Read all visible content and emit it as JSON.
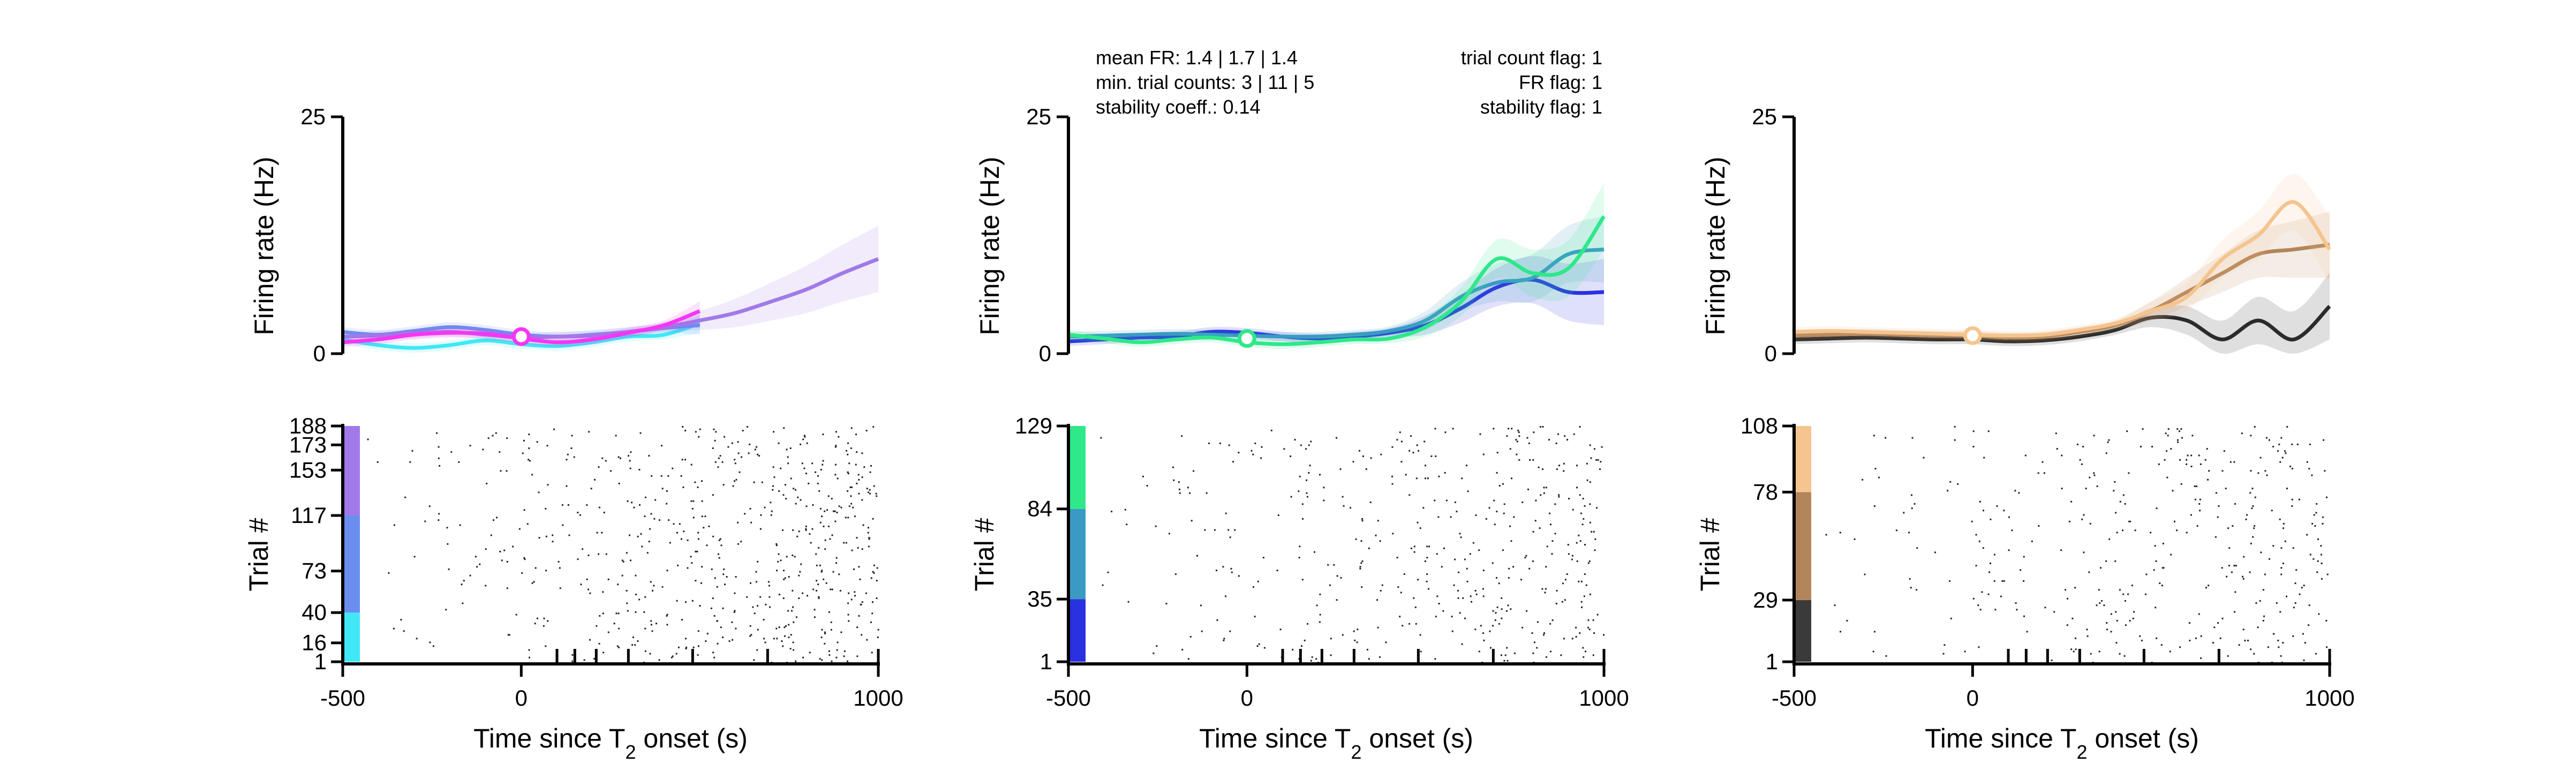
{
  "annotations": {
    "left": [
      "mean FR: 1.4 | 1.7 | 1.4",
      "min. trial counts: 3 | 11 | 5",
      "stability coeff.: 0.14"
    ],
    "right": [
      "trial count flag: 1",
      "FR flag: 1",
      "stability flag: 1"
    ]
  },
  "chart_data": [
    {
      "type": "line",
      "panel": "top-left",
      "ylabel": "Firing rate (Hz)",
      "ylim": [
        0,
        25
      ],
      "yticks": [
        "0",
        "25"
      ],
      "xlim": [
        -500,
        1000
      ],
      "grid": false,
      "series": [
        {
          "color": "#40e8f5",
          "x": [
            -500,
            -400,
            -300,
            -200,
            -100,
            0,
            100,
            200,
            300,
            400,
            500
          ],
          "y": [
            1.5,
            0.9,
            0.6,
            0.9,
            1.4,
            1.0,
            0.8,
            1.2,
            1.8,
            2.0,
            3.2
          ]
        },
        {
          "color": "#6a8ef0",
          "x": [
            -500,
            -400,
            -300,
            -200,
            -100,
            0,
            100,
            200,
            300,
            400,
            500
          ],
          "y": [
            2.3,
            2.0,
            2.4,
            2.8,
            2.5,
            2.0,
            1.8,
            2.0,
            2.3,
            2.7,
            3.0
          ]
        },
        {
          "color": "#a07ae8",
          "x": [
            -500,
            -400,
            -300,
            -200,
            -100,
            0,
            100,
            200,
            300,
            400,
            500,
            600,
            700,
            800,
            900,
            1000
          ],
          "y": [
            1.8,
            1.9,
            2.1,
            2.3,
            2.0,
            1.7,
            1.8,
            1.9,
            2.3,
            2.8,
            3.5,
            4.3,
            5.5,
            6.8,
            8.5,
            10.0
          ]
        },
        {
          "color": "#f536f2",
          "x": [
            -500,
            -400,
            -300,
            -200,
            -100,
            0,
            100,
            200,
            300,
            400,
            500
          ],
          "y": [
            1.2,
            1.5,
            2.0,
            2.2,
            2.1,
            1.6,
            1.2,
            1.5,
            2.2,
            3.0,
            4.5
          ]
        }
      ],
      "marker": {
        "x": 0,
        "y": 1.8
      },
      "raster": {
        "ylabel": "Trial #",
        "yticks": [
          "1",
          "16",
          "40",
          "73",
          "117",
          "153",
          "173",
          "188"
        ],
        "trials": 188,
        "condition_bounds": [
          1,
          40,
          117,
          188
        ],
        "colors": [
          "#40e8f5",
          "#6a8ef0",
          "#a07ae8",
          "#f536f2"
        ]
      },
      "xticks": [
        "-500",
        "0",
        "1000"
      ],
      "xlabel": "Time since T2 onset (s)",
      "minor_tick_positions": [
        100,
        150,
        210,
        300,
        480,
        690,
        1000
      ]
    },
    {
      "type": "line",
      "panel": "top-middle",
      "ylabel": "Firing rate (Hz)",
      "ylim": [
        0,
        25
      ],
      "yticks": [
        "0",
        "25"
      ],
      "xlim": [
        -500,
        1000
      ],
      "grid": false,
      "series": [
        {
          "color": "#2a31e0",
          "x": [
            -500,
            -400,
            -300,
            -200,
            -100,
            0,
            100,
            200,
            300,
            400,
            500,
            600,
            700,
            800,
            900,
            1000
          ],
          "y": [
            1.3,
            1.5,
            1.7,
            1.8,
            2.3,
            2.2,
            1.8,
            1.6,
            1.8,
            2.2,
            3.0,
            4.8,
            7.0,
            7.8,
            6.5,
            6.5
          ]
        },
        {
          "color": "#3a9ac4",
          "x": [
            -500,
            -400,
            -300,
            -200,
            -100,
            0,
            100,
            200,
            300,
            400,
            500,
            600,
            700,
            800,
            900,
            1000
          ],
          "y": [
            1.8,
            1.9,
            2.0,
            2.1,
            2.0,
            1.9,
            1.8,
            1.8,
            2.0,
            2.4,
            3.5,
            6.0,
            7.5,
            8.0,
            10.5,
            11.0
          ]
        },
        {
          "color": "#2ee88a",
          "x": [
            -500,
            -400,
            -300,
            -200,
            -100,
            0,
            100,
            200,
            300,
            400,
            500,
            600,
            700,
            800,
            900,
            1000
          ],
          "y": [
            2.0,
            1.6,
            1.2,
            1.5,
            1.7,
            1.2,
            1.0,
            1.2,
            1.5,
            1.6,
            2.8,
            5.5,
            10.0,
            8.5,
            9.0,
            14.5
          ]
        }
      ],
      "marker": {
        "x": 0,
        "y": 1.6
      },
      "raster": {
        "ylabel": "Trial #",
        "yticks": [
          "1",
          "35",
          "84",
          "129"
        ],
        "trials": 129,
        "condition_bounds": [
          1,
          35,
          84,
          129
        ],
        "colors": [
          "#2a31e0",
          "#3a9ac4",
          "#2ee88a"
        ]
      },
      "xticks": [
        "-500",
        "0",
        "1000"
      ],
      "xlabel": "Time since T2 onset (s)",
      "minor_tick_positions": [
        100,
        150,
        210,
        300,
        480,
        690,
        1000
      ]
    },
    {
      "type": "line",
      "panel": "top-right",
      "ylabel": "Firing rate (Hz)",
      "ylim": [
        0,
        25
      ],
      "yticks": [
        "0",
        "25"
      ],
      "xlim": [
        -500,
        1000
      ],
      "grid": false,
      "series": [
        {
          "color": "#2b2b2b",
          "x": [
            -500,
            -400,
            -300,
            -200,
            -100,
            0,
            100,
            200,
            300,
            400,
            500,
            600,
            700,
            800,
            900,
            1000
          ],
          "y": [
            1.5,
            1.6,
            1.7,
            1.6,
            1.5,
            1.5,
            1.3,
            1.4,
            1.8,
            2.5,
            3.8,
            3.5,
            1.5,
            3.5,
            1.5,
            5.0
          ]
        },
        {
          "color": "#b3855a",
          "x": [
            -500,
            -400,
            -300,
            -200,
            -100,
            0,
            100,
            200,
            300,
            400,
            500,
            600,
            700,
            800,
            900,
            1000
          ],
          "y": [
            1.9,
            2.0,
            2.1,
            2.0,
            1.9,
            1.9,
            1.7,
            1.8,
            2.3,
            3.0,
            4.5,
            6.5,
            8.5,
            10.5,
            11.0,
            11.5
          ]
        },
        {
          "color": "#f5c48f",
          "x": [
            -500,
            -400,
            -300,
            -200,
            -100,
            0,
            100,
            200,
            300,
            400,
            500,
            600,
            700,
            800,
            900,
            1000
          ],
          "y": [
            2.3,
            2.4,
            2.3,
            2.2,
            2.1,
            2.0,
            1.9,
            2.0,
            2.5,
            3.2,
            4.5,
            6.0,
            10.0,
            12.5,
            16.0,
            11.0
          ]
        }
      ],
      "marker": {
        "x": 0,
        "y": 1.9
      },
      "raster": {
        "ylabel": "Trial #",
        "yticks": [
          "1",
          "29",
          "78",
          "108"
        ],
        "trials": 108,
        "condition_bounds": [
          1,
          29,
          78,
          108
        ],
        "colors": [
          "#3a3a3a",
          "#b3855a",
          "#f5c48f"
        ]
      },
      "xticks": [
        "-500",
        "0",
        "1000"
      ],
      "xlabel": "Time since T2 onset (s)",
      "minor_tick_positions": [
        100,
        150,
        210,
        300,
        480,
        690,
        1000
      ]
    }
  ]
}
